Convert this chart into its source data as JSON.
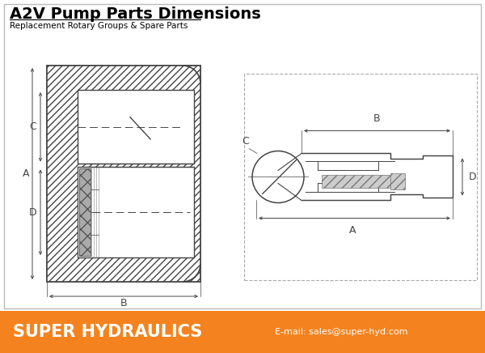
{
  "title": "A2V Pump Parts Dimensions",
  "subtitle": "Replacement Rotary Groups & Spare Parts",
  "footer_bg": "#F4831F",
  "footer_text": "SUPER HYDRAULICS",
  "footer_email": "E-mail: sales@super-hyd.com",
  "bg_color": "#FFFFFF",
  "lc": "#444444",
  "hatch_color": "#666666",
  "title_fontsize": 14,
  "subtitle_fontsize": 7.5,
  "footer_fontsize": 16,
  "label_A": "A",
  "label_B": "B",
  "label_C": "C",
  "label_D": "D"
}
